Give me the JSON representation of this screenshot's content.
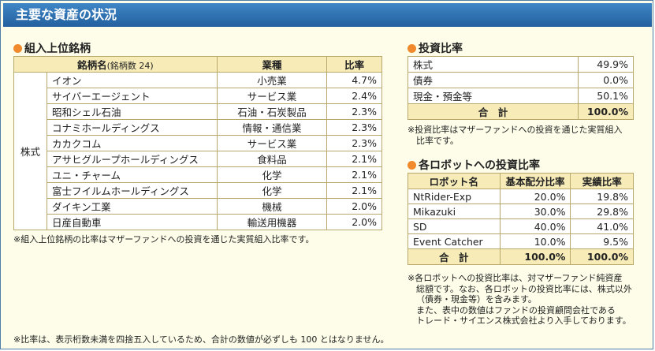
{
  "title": "主要な資産の状況",
  "holdings": {
    "heading": "組入上位銘柄",
    "col_name": "銘柄名",
    "col_count": "(銘柄数 24)",
    "col_industry": "業種",
    "col_ratio": "比率",
    "category": "株式",
    "rows": [
      {
        "name": "イオン",
        "industry": "小売業",
        "ratio": "4.7%"
      },
      {
        "name": "サイバーエージェント",
        "industry": "サービス業",
        "ratio": "2.4%"
      },
      {
        "name": "昭和シェル石油",
        "industry": "石油・石炭製品",
        "ratio": "2.3%"
      },
      {
        "name": "コナミホールディングス",
        "industry": "情報・通信業",
        "ratio": "2.3%"
      },
      {
        "name": "カカクコム",
        "industry": "サービス業",
        "ratio": "2.3%"
      },
      {
        "name": "アサヒグループホールディングス",
        "industry": "食料品",
        "ratio": "2.1%"
      },
      {
        "name": "ユニ・チャーム",
        "industry": "化学",
        "ratio": "2.1%"
      },
      {
        "name": "富士フイルムホールディングス",
        "industry": "化学",
        "ratio": "2.1%"
      },
      {
        "name": "ダイキン工業",
        "industry": "機械",
        "ratio": "2.0%"
      },
      {
        "name": "日産自動車",
        "industry": "輸送用機器",
        "ratio": "2.0%"
      }
    ],
    "note": "※組入上位銘柄の比率はマザーファンドへの投資を通じた実質組入比率です。"
  },
  "allocation": {
    "heading": "投資比率",
    "rows": [
      {
        "label": "株式",
        "value": "49.9%"
      },
      {
        "label": "債券",
        "value": "0.0%"
      },
      {
        "label": "現金・預金等",
        "value": "50.1%"
      }
    ],
    "total_label": "合　計",
    "total_value": "100.0%",
    "note_line1": "※投資比率はマザーファンドへの投資を通じた実質組入",
    "note_line2": "比率です。"
  },
  "robots": {
    "heading": "各ロボットへの投資比率",
    "col_robot": "ロボット名",
    "col_base": "基本配分比率",
    "col_actual": "実績比率",
    "rows": [
      {
        "name": "NtRider-Exp",
        "base": "20.0%",
        "actual": "19.8%"
      },
      {
        "name": "Mikazuki",
        "base": "30.0%",
        "actual": "29.8%"
      },
      {
        "name": "SD",
        "base": "40.0%",
        "actual": "41.0%"
      },
      {
        "name": "Event Catcher",
        "base": "10.0%",
        "actual": "9.5%"
      }
    ],
    "total_label": "合　計",
    "total_base": "100.0%",
    "total_actual": "100.0%",
    "note_lines": [
      "※各ロボットへの投資比率は、対マザーファンド純資産",
      "総額です。なお、各ロボットの投資比率には、株式以外",
      "（債券・現金等）を含みます。",
      "また、表中の数値はファンドの投資顧問会社である",
      "トレード・サイエンス株式会社より入手しております。"
    ]
  },
  "footer_note": "※比率は、表示桁数未満を四捨五入しているため、合計の数値が必ずしも 100 とはなりません。"
}
